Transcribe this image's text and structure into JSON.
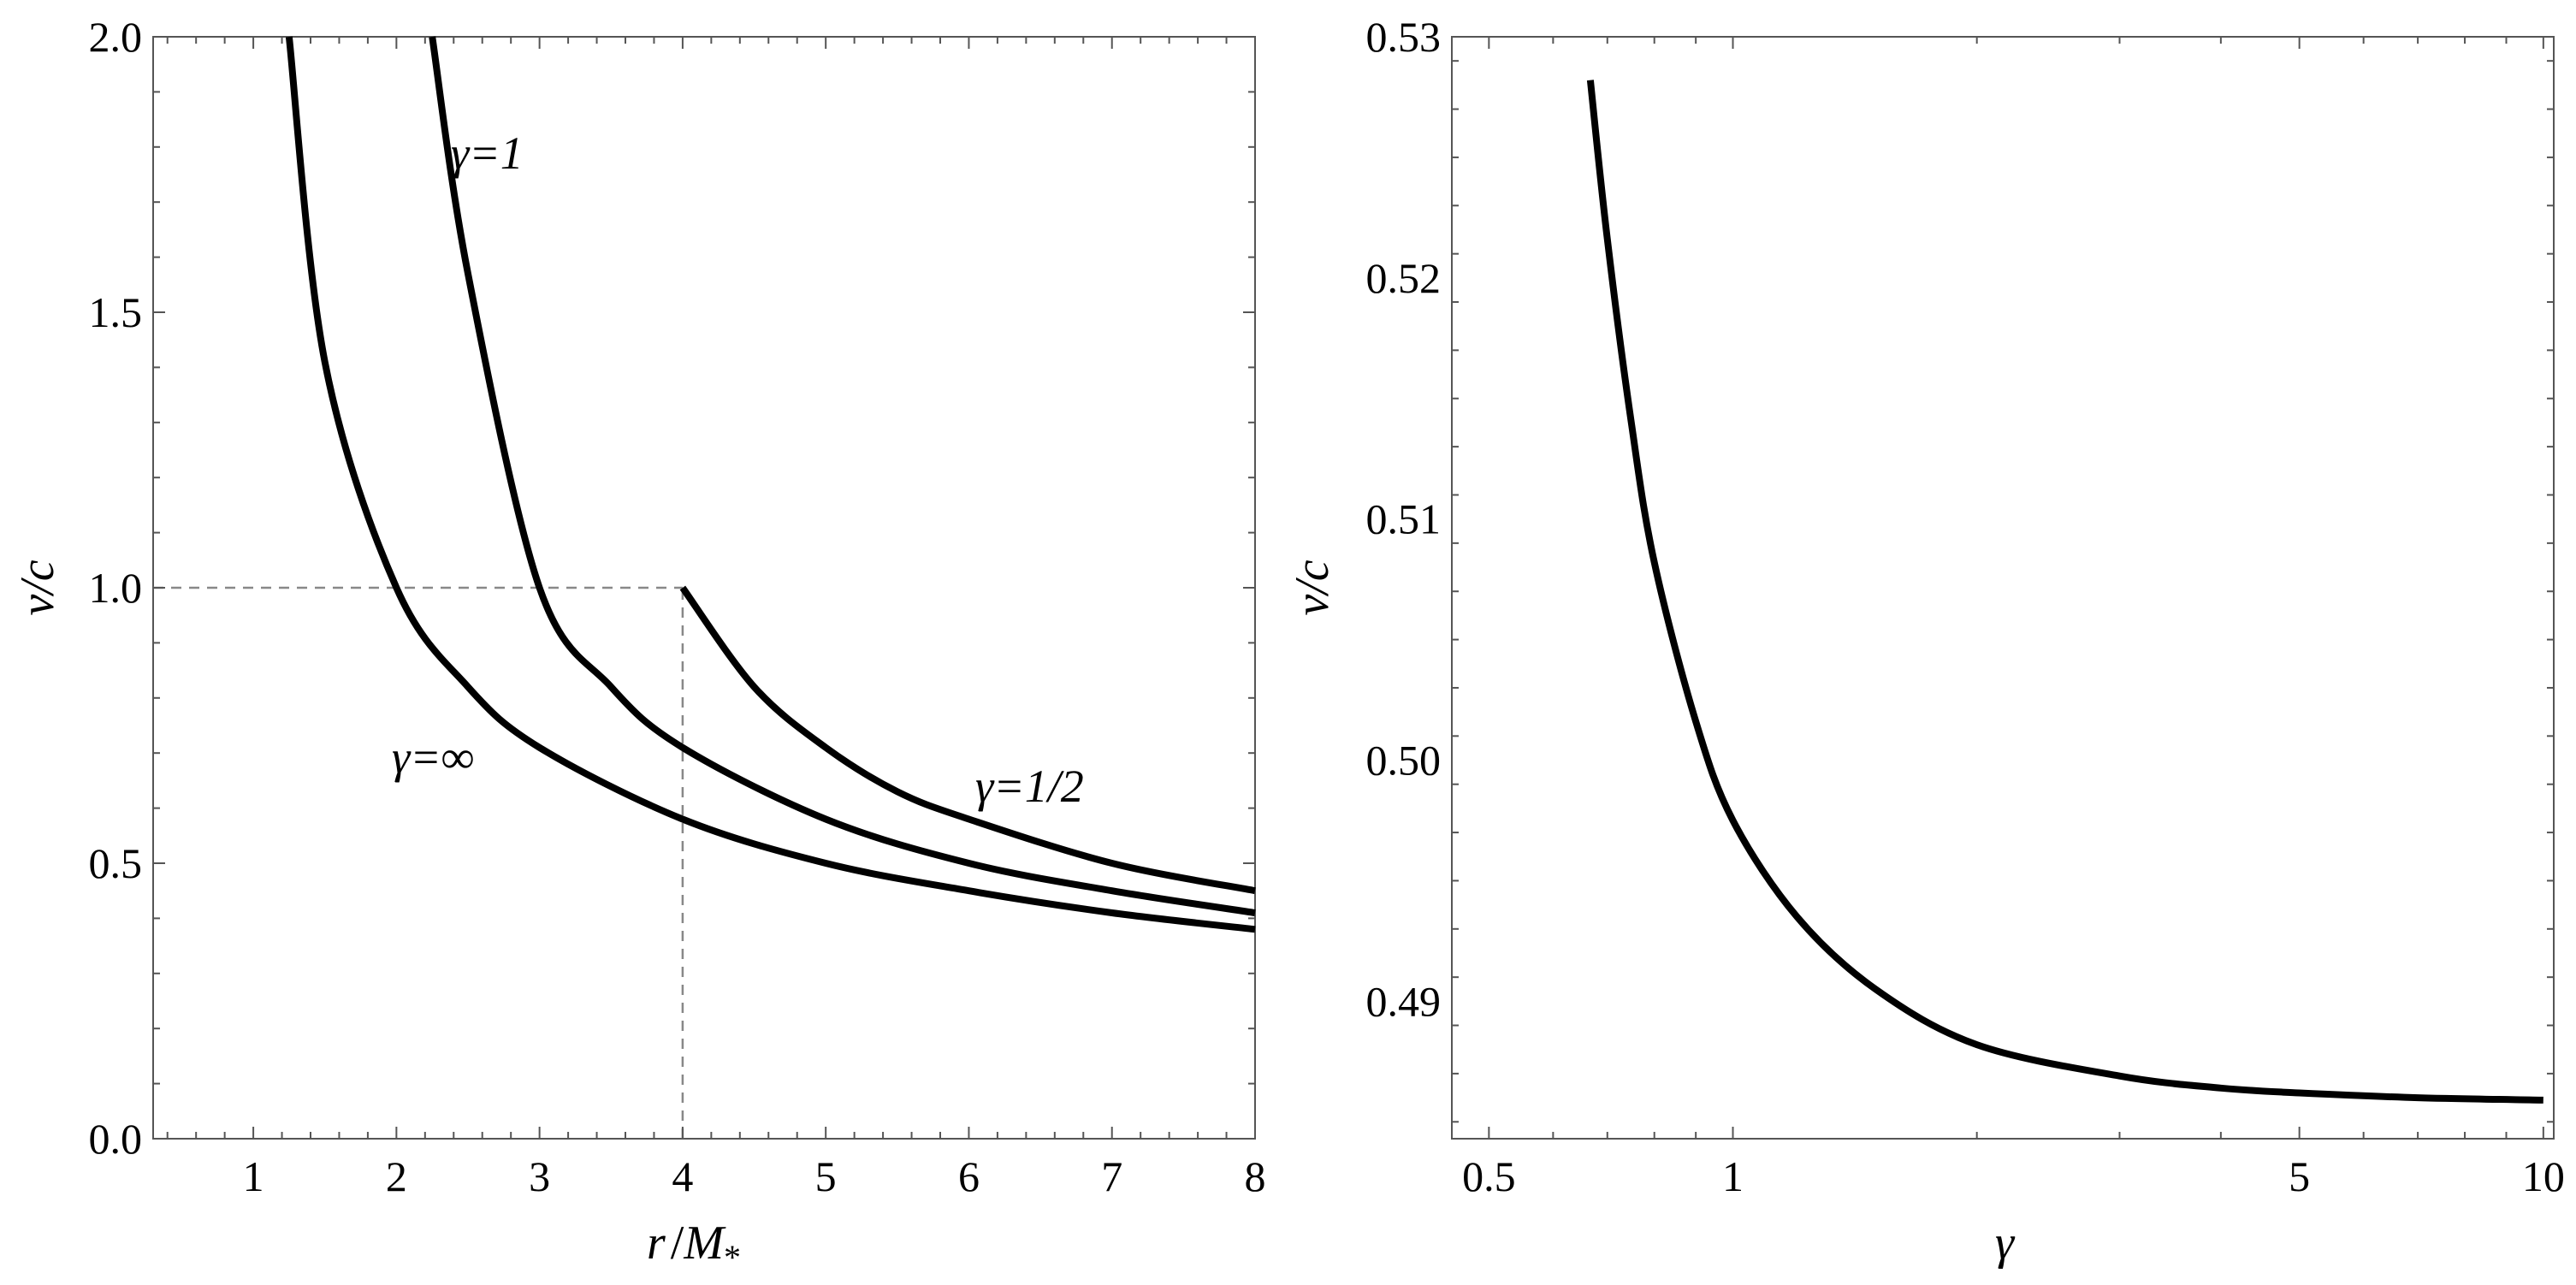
{
  "chart_data": [
    {
      "type": "line",
      "xlabel": "r/M*",
      "ylabel": "v/c",
      "xlim": [
        0.3,
        8
      ],
      "ylim": [
        0,
        2
      ],
      "x_ticks": [
        "1",
        "2",
        "3",
        "4",
        "5",
        "6",
        "7",
        "8"
      ],
      "y_ticks": [
        "0.0",
        "0.5",
        "1.0",
        "1.5",
        "2.0"
      ],
      "grid": false,
      "series": [
        {
          "name": "γ=∞",
          "x": [
            1.25,
            1.5,
            2,
            2.5,
            3,
            4,
            5,
            6,
            7,
            8
          ],
          "y": [
            2.0,
            1.41,
            1.0,
            0.82,
            0.71,
            0.58,
            0.5,
            0.45,
            0.41,
            0.38
          ]
        },
        {
          "name": "γ=1",
          "x": [
            2.25,
            2.5,
            3,
            3.5,
            4,
            5,
            6,
            7,
            8
          ],
          "y": [
            2.0,
            1.57,
            1.0,
            0.82,
            0.71,
            0.58,
            0.5,
            0.45,
            0.41
          ]
        },
        {
          "name": "γ=1/2",
          "x": [
            4,
            4.5,
            5,
            5.5,
            6,
            7,
            8
          ],
          "y": [
            1.0,
            0.82,
            0.71,
            0.63,
            0.58,
            0.5,
            0.45
          ]
        }
      ],
      "reference_lines": [
        {
          "kind": "horizontal",
          "y": 1.0,
          "x_from": 0.3,
          "x_to": 4
        },
        {
          "kind": "vertical",
          "x": 4,
          "y_from": 0,
          "y_to": 1.0
        }
      ],
      "annotations": [
        "γ=1",
        "γ=∞",
        "γ=1/2"
      ]
    },
    {
      "type": "line",
      "xlabel": "γ",
      "ylabel": "v/c",
      "x_scale": "log",
      "xlim": [
        0.45,
        10.3
      ],
      "ylim": [
        0.4843,
        0.53
      ],
      "x_ticks": [
        "0.5",
        "1",
        "5",
        "10"
      ],
      "y_ticks": [
        "0.49",
        "0.50",
        "0.51",
        "0.52",
        "0.53"
      ],
      "grid": false,
      "series": [
        {
          "x": [
            0.667,
            0.7,
            0.75,
            0.8,
            0.9,
            1.0,
            1.2,
            1.5,
            2,
            3,
            4,
            5,
            7,
            10
          ],
          "y": [
            0.5282,
            0.5216,
            0.5139,
            0.5082,
            0.5016,
            0.4975,
            0.4935,
            0.4905,
            0.4882,
            0.4869,
            0.4864,
            0.4862,
            0.486,
            0.4859
          ]
        }
      ]
    }
  ],
  "axis_tokens": {
    "r_symbol": "r",
    "m_symbol": "M",
    "m_sub": "*",
    "slash": "/",
    "gamma": "γ",
    "vc": "v/c"
  }
}
